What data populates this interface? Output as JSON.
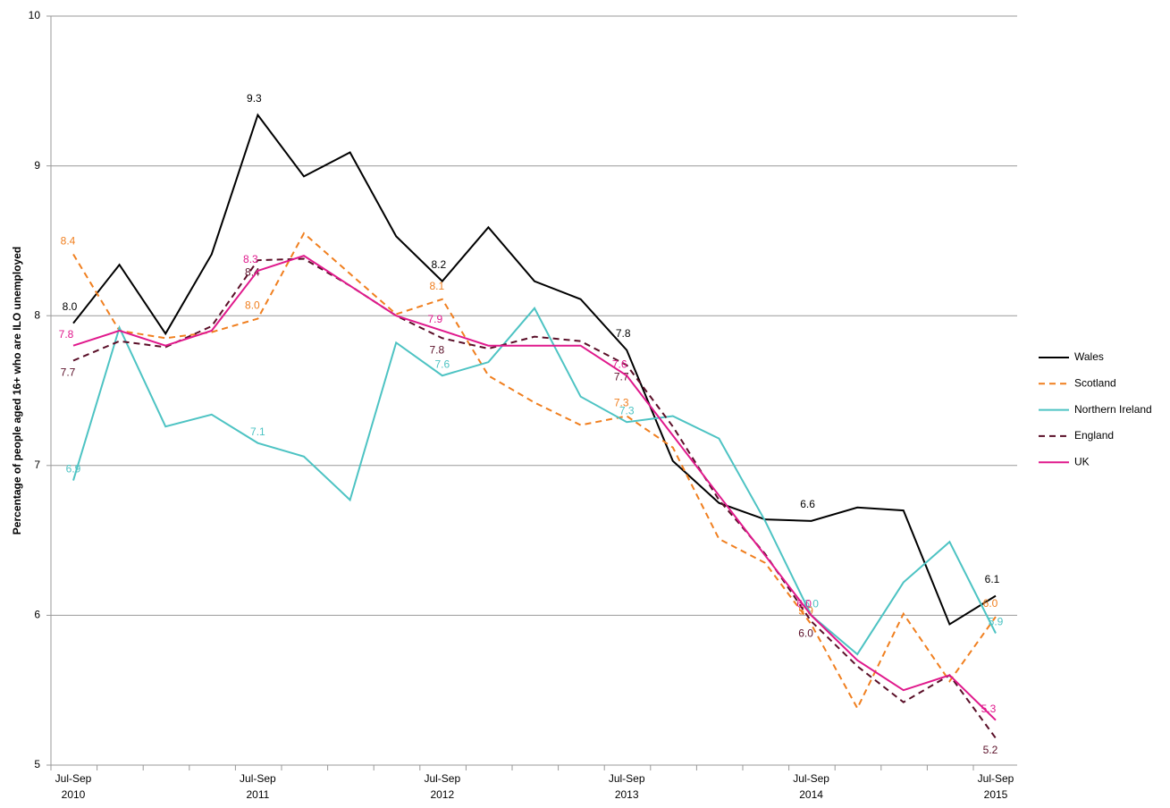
{
  "chart_data": {
    "type": "line",
    "y_label": "Percentage of people aged 16+ who are ILO unemployed",
    "categories": [
      "Jul-Sep 2010",
      null,
      null,
      null,
      "Jul-Sep 2011",
      null,
      null,
      null,
      "Jul-Sep 2012",
      null,
      null,
      null,
      "Jul-Sep 2013",
      null,
      null,
      null,
      "Jul-Sep 2014",
      null,
      null,
      null,
      "Jul-Sep 2015"
    ],
    "ylim": [
      5,
      10
    ],
    "yticks": [
      5,
      6,
      7,
      8,
      9,
      10
    ],
    "grid": true,
    "legend": "right",
    "series": [
      {
        "name": "Wales",
        "color": "#000000",
        "dashed": false,
        "values": [
          7.95,
          8.34,
          7.88,
          8.41,
          9.34,
          8.93,
          9.09,
          8.53,
          8.23,
          8.59,
          8.23,
          8.11,
          7.77,
          7.03,
          6.75,
          6.64,
          6.63,
          6.72,
          6.7,
          5.94,
          6.13
        ],
        "value_labels": [
          "8.0",
          null,
          null,
          null,
          "9.3",
          null,
          null,
          null,
          "8.2",
          null,
          null,
          null,
          "7.8",
          null,
          null,
          null,
          "6.6",
          null,
          null,
          null,
          "6.1"
        ]
      },
      {
        "name": "Scotland",
        "color": "#f07f1f",
        "dashed": true,
        "values": [
          8.41,
          7.9,
          7.85,
          7.89,
          7.98,
          8.55,
          8.28,
          8.01,
          8.11,
          7.6,
          7.42,
          7.27,
          7.33,
          7.12,
          6.51,
          6.35,
          5.94,
          5.38,
          6.01,
          5.56,
          5.99
        ],
        "value_labels": [
          "8.4",
          null,
          null,
          null,
          "8.0",
          null,
          null,
          null,
          "8.1",
          null,
          null,
          null,
          "7.3",
          null,
          null,
          null,
          "5.9",
          null,
          null,
          null,
          "6.0"
        ]
      },
      {
        "name": "Northern Ireland",
        "color": "#4dc3c3",
        "dashed": false,
        "values": [
          6.9,
          7.92,
          7.26,
          7.34,
          7.15,
          7.06,
          6.77,
          7.82,
          7.6,
          7.69,
          8.05,
          7.46,
          7.29,
          7.33,
          7.18,
          6.63,
          6.0,
          5.74,
          6.22,
          6.49,
          5.88
        ],
        "value_labels": [
          "6.9",
          null,
          null,
          null,
          "7.1",
          null,
          null,
          null,
          "7.6",
          null,
          null,
          null,
          "7.3",
          null,
          null,
          null,
          "6.0",
          null,
          null,
          null,
          "5.9"
        ]
      },
      {
        "name": "England",
        "color": "#5a0f28",
        "dashed": true,
        "values": [
          7.7,
          7.83,
          7.79,
          7.93,
          8.37,
          8.38,
          8.2,
          8.0,
          7.85,
          7.78,
          7.86,
          7.83,
          7.67,
          7.26,
          6.77,
          6.41,
          5.96,
          5.66,
          5.42,
          5.6,
          5.18
        ],
        "value_labels": [
          "7.7",
          null,
          null,
          null,
          "8.4",
          null,
          null,
          null,
          "7.8",
          null,
          null,
          null,
          "7.7",
          null,
          null,
          null,
          "6.0",
          null,
          null,
          null,
          "5.2"
        ]
      },
      {
        "name": "UK",
        "color": "#e0198c",
        "dashed": false,
        "values": [
          7.8,
          7.9,
          7.8,
          7.9,
          8.3,
          8.4,
          8.2,
          8.0,
          7.9,
          7.8,
          7.8,
          7.8,
          7.6,
          7.2,
          6.8,
          6.4,
          6.0,
          5.7,
          5.5,
          5.6,
          5.3
        ],
        "value_labels": [
          "7.8",
          null,
          null,
          null,
          "8.3",
          null,
          null,
          null,
          "7.9",
          null,
          null,
          null,
          "7.6",
          null,
          null,
          null,
          "6.0",
          null,
          null,
          null,
          "5.3"
        ]
      }
    ]
  }
}
